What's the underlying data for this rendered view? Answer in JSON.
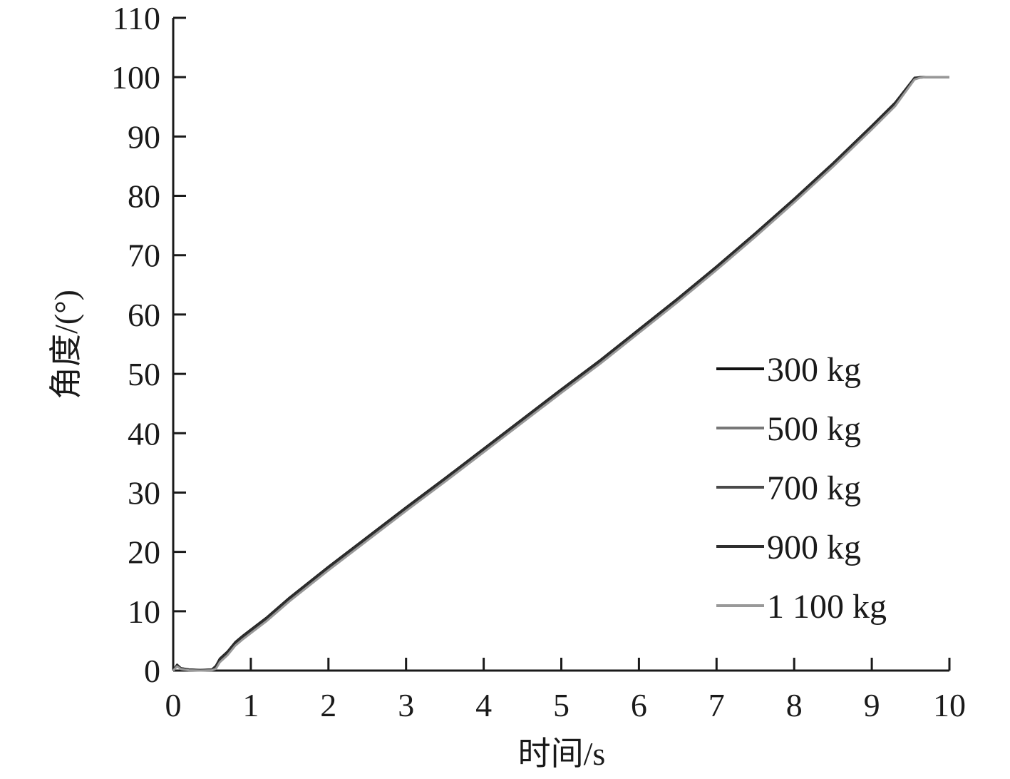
{
  "chart_data": {
    "type": "line",
    "xlabel": "时间/s",
    "ylabel": "角度/(°)",
    "xlim": [
      0,
      10
    ],
    "ylim": [
      0,
      110
    ],
    "xticks": [
      "0",
      "1",
      "2",
      "3",
      "4",
      "5",
      "6",
      "7",
      "8",
      "9",
      "10"
    ],
    "yticks": [
      "0",
      "10",
      "20",
      "30",
      "40",
      "50",
      "60",
      "70",
      "80",
      "90",
      "100",
      "110"
    ],
    "grid": false,
    "legend_position": "lower-right",
    "series": [
      {
        "name": "300 kg",
        "color": "#111111",
        "x": [
          0,
          0.05,
          0.1,
          0.2,
          0.35,
          0.5,
          0.55,
          0.6,
          0.65,
          0.7,
          0.8,
          0.9,
          1.0,
          1.2,
          1.5,
          2.0,
          2.5,
          3.0,
          3.5,
          4.0,
          4.5,
          5.0,
          5.5,
          6.0,
          6.5,
          7.0,
          7.5,
          8.0,
          8.5,
          9.0,
          9.3,
          9.55,
          9.62,
          9.7,
          10.0
        ],
        "y": [
          0,
          1.0,
          0.4,
          0.2,
          0.1,
          0.2,
          0.8,
          2.0,
          2.6,
          3.2,
          4.8,
          5.9,
          6.9,
          8.9,
          12.3,
          17.5,
          22.5,
          27.5,
          32.4,
          37.4,
          42.4,
          47.4,
          52.3,
          57.5,
          62.7,
          68.1,
          73.7,
          79.5,
          85.5,
          91.8,
          95.7,
          99.9,
          100.0,
          100.0,
          100.0
        ]
      },
      {
        "name": "500 kg",
        "color": "#777777",
        "x": [
          0,
          0.05,
          0.1,
          0.2,
          0.35,
          0.5,
          0.55,
          0.6,
          0.65,
          0.7,
          0.8,
          0.9,
          1.0,
          1.2,
          1.5,
          2.0,
          2.5,
          3.0,
          3.5,
          4.0,
          4.5,
          5.0,
          5.5,
          6.0,
          6.5,
          7.0,
          7.5,
          8.0,
          8.5,
          9.0,
          9.3,
          9.55,
          9.62,
          9.7,
          10.0
        ],
        "y": [
          0,
          0.8,
          0.3,
          0.1,
          0.0,
          0.1,
          0.4,
          1.6,
          2.2,
          2.8,
          4.4,
          5.5,
          6.5,
          8.5,
          11.9,
          17.1,
          22.1,
          27.1,
          32.0,
          37.0,
          42.0,
          47.0,
          51.9,
          57.1,
          62.3,
          67.7,
          73.3,
          79.1,
          85.1,
          91.4,
          95.3,
          99.7,
          99.9,
          100.0,
          100.0
        ]
      },
      {
        "name": "700 kg",
        "color": "#4a4a4a",
        "x": [
          0,
          0.05,
          0.1,
          0.2,
          0.35,
          0.5,
          0.55,
          0.6,
          0.65,
          0.7,
          0.8,
          0.9,
          1.0,
          1.2,
          1.5,
          2.0,
          2.5,
          3.0,
          3.5,
          4.0,
          4.5,
          5.0,
          5.5,
          6.0,
          6.5,
          7.0,
          7.5,
          8.0,
          8.5,
          9.0,
          9.3,
          9.55,
          9.62,
          9.7,
          10.0
        ],
        "y": [
          0,
          0.9,
          0.35,
          0.15,
          0.05,
          0.15,
          0.6,
          1.8,
          2.4,
          3.0,
          4.6,
          5.7,
          6.7,
          8.7,
          12.1,
          17.3,
          22.3,
          27.3,
          32.2,
          37.2,
          42.2,
          47.2,
          52.1,
          57.3,
          62.5,
          67.9,
          73.5,
          79.3,
          85.3,
          91.6,
          95.5,
          99.8,
          100.0,
          100.0,
          100.0
        ]
      },
      {
        "name": "900 kg",
        "color": "#2e2e2e",
        "x": [
          0,
          0.05,
          0.1,
          0.2,
          0.35,
          0.5,
          0.55,
          0.6,
          0.65,
          0.7,
          0.8,
          0.9,
          1.0,
          1.2,
          1.5,
          2.0,
          2.5,
          3.0,
          3.5,
          4.0,
          4.5,
          5.0,
          5.5,
          6.0,
          6.5,
          7.0,
          7.5,
          8.0,
          8.5,
          9.0,
          9.3,
          9.55,
          9.62,
          9.7,
          10.0
        ],
        "y": [
          0,
          0.95,
          0.38,
          0.18,
          0.08,
          0.18,
          0.7,
          1.9,
          2.5,
          3.1,
          4.7,
          5.8,
          6.8,
          8.8,
          12.2,
          17.4,
          22.4,
          27.4,
          32.3,
          37.3,
          42.3,
          47.3,
          52.2,
          57.4,
          62.6,
          68.0,
          73.6,
          79.4,
          85.4,
          91.7,
          95.6,
          99.85,
          100.0,
          100.0,
          100.0
        ]
      },
      {
        "name": "1 100 kg",
        "color": "#999999",
        "x": [
          0,
          0.05,
          0.1,
          0.2,
          0.35,
          0.5,
          0.55,
          0.6,
          0.65,
          0.7,
          0.8,
          0.9,
          1.0,
          1.2,
          1.5,
          2.0,
          2.5,
          3.0,
          3.5,
          4.0,
          4.5,
          5.0,
          5.5,
          6.0,
          6.5,
          7.0,
          7.5,
          8.0,
          8.5,
          9.0,
          9.3,
          9.55,
          9.62,
          9.7,
          10.0
        ],
        "y": [
          0,
          0.7,
          0.25,
          0.05,
          0.0,
          0.05,
          0.3,
          1.4,
          2.0,
          2.6,
          4.2,
          5.3,
          6.3,
          8.3,
          11.7,
          16.9,
          21.9,
          26.9,
          31.8,
          36.8,
          41.8,
          46.8,
          51.7,
          56.9,
          62.1,
          67.5,
          73.1,
          78.9,
          84.9,
          91.2,
          95.1,
          99.6,
          99.9,
          100.0,
          100.0
        ]
      }
    ]
  }
}
